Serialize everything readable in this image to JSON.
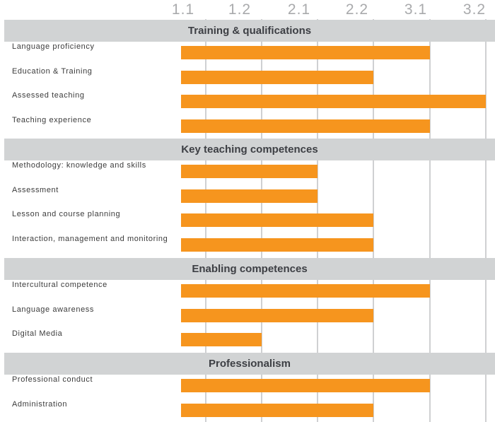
{
  "chart_data": {
    "type": "bar",
    "orientation": "horizontal",
    "bar_color": "#f6951e",
    "band_color": "#d1d3d4",
    "levels": [
      "1.1",
      "1.2",
      "2.1",
      "2.2",
      "3.1",
      "3.2"
    ],
    "groups": [
      {
        "title": "Training & qualifications",
        "rows": [
          {
            "label": "Language proficiency",
            "value": "3.1"
          },
          {
            "label": "Education & Training",
            "value": "2.2"
          },
          {
            "label": "Assessed teaching",
            "value": "3.2"
          },
          {
            "label": "Teaching experience",
            "value": "3.1"
          }
        ]
      },
      {
        "title": "Key teaching competences",
        "rows": [
          {
            "label": "Methodology: knowledge and skills",
            "value": "2.1"
          },
          {
            "label": "Assessment",
            "value": "2.1"
          },
          {
            "label": "Lesson and course planning",
            "value": "2.2"
          },
          {
            "label": "Interaction, management and monitoring",
            "value": "2.2"
          }
        ]
      },
      {
        "title": "Enabling competences",
        "rows": [
          {
            "label": "Intercultural competence",
            "value": "3.1"
          },
          {
            "label": "Language awareness",
            "value": "2.2"
          },
          {
            "label": "Digital Media",
            "value": "1.2"
          }
        ]
      },
      {
        "title": "Professionalism",
        "rows": [
          {
            "label": "Professional conduct",
            "value": "3.1"
          },
          {
            "label": "Administration",
            "value": "2.2"
          }
        ]
      }
    ]
  }
}
